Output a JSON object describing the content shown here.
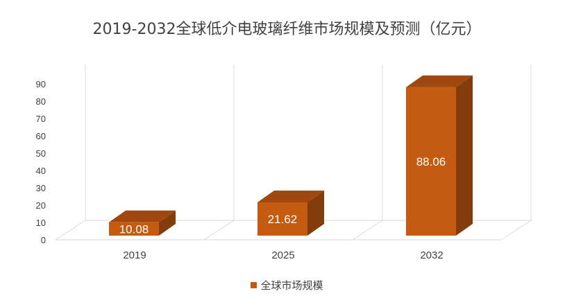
{
  "chart_data": {
    "type": "bar",
    "title": "2019-2032全球低介电玻璃纤维市场规模及预测（亿元）",
    "categories": [
      "2019",
      "2025",
      "2032"
    ],
    "series": [
      {
        "name": "全球市场规模",
        "values": [
          10.08,
          21.62,
          88.06
        ],
        "color": "#C55A11"
      }
    ],
    "data_labels": [
      "10.08",
      "21.62",
      "88.06"
    ],
    "yticks": [
      "0",
      "10",
      "20",
      "30",
      "40",
      "50",
      "60",
      "70",
      "80",
      "90"
    ],
    "ylim": [
      0,
      90
    ],
    "grid": true,
    "legend_position": "bottom",
    "style": "3d-column"
  }
}
